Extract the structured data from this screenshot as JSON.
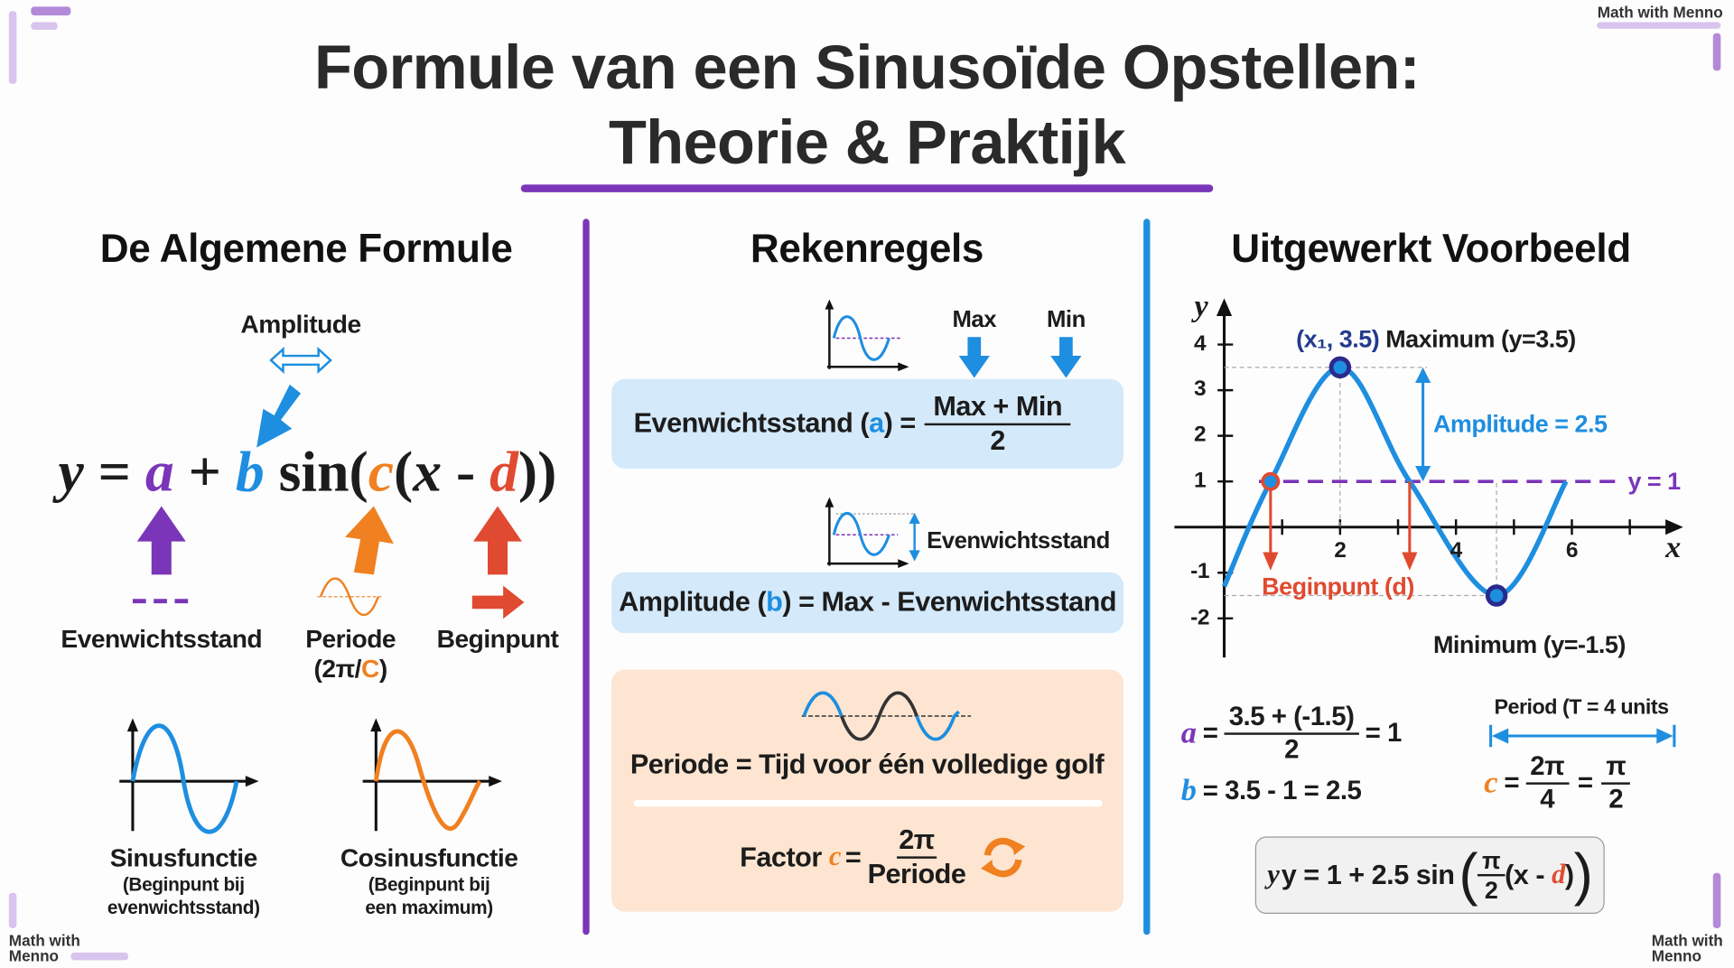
{
  "title": {
    "line1": "Formule van een Sinusoïde Opstellen:",
    "line2": "Theorie & Praktijk"
  },
  "watermark": {
    "top_right": "Math with Menno",
    "bottom_left_1": "Math with",
    "bottom_left_2": "Menno",
    "bottom_right_1": "Math with",
    "bottom_right_2": "Menno"
  },
  "colors": {
    "purple": "#7a35b8",
    "blue": "#1e8ee0",
    "orange": "#f08020",
    "red": "#e04a30",
    "box_blue": "#d4e9f9",
    "box_peach": "#fde5d1"
  },
  "left": {
    "heading": "De Algemene Formule",
    "amplitude_label": "Amplitude",
    "formula": {
      "y": "y",
      "eq": " = ",
      "a": "a",
      "plus": " + ",
      "b": "b",
      "sin": " sin(",
      "c": "c",
      "open": "(",
      "x": "x",
      "minus": " - ",
      "d": "d",
      "close": "))"
    },
    "labels": {
      "a": "Evenwichtsstand",
      "c": "Periode",
      "c_sub_pre": "(2π/",
      "c_sub_c": "C",
      "c_sub_post": ")",
      "d": "Beginpunt"
    },
    "sine": {
      "name": "Sinusfunctie",
      "sub1": "(Beginpunt bij",
      "sub2": "evenwichtsstand)"
    },
    "cosine": {
      "name": "Cosinusfunctie",
      "sub1": "(Beginpunt bij",
      "sub2": "een maximum)"
    }
  },
  "middle": {
    "heading": "Rekenregels",
    "max_label": "Max",
    "min_label": "Min",
    "eq1": {
      "pre": "Evenwichtsstand (",
      "var": "a",
      "post": ") =",
      "num": "Max + Min",
      "den": "2"
    },
    "amp_icon_label": "Evenwichtsstand",
    "eq2": {
      "pre": "Amplitude (",
      "var": "b",
      "post": ") = Max - Evenwichtsstand"
    },
    "period_def": "Periode = Tijd voor één volledige golf",
    "eq3": {
      "pre": "Factor ",
      "var": "c",
      "post": " =",
      "num": "2π",
      "den": "Periode"
    }
  },
  "right": {
    "heading": "Uitgewerkt Voorbeeld",
    "graph": {
      "y_axis_label": "y",
      "x_axis_label": "x",
      "x_ticks": [
        "2",
        "4",
        "6"
      ],
      "y_ticks": [
        "4",
        "3",
        "2",
        "1",
        "-1",
        "-2"
      ],
      "max_point": "(x₁, 3.5)",
      "max_label": "Maximum (y=3.5)",
      "min_label": "Minimum (y=-1.5)",
      "amplitude_label": "Amplitude = 2.5",
      "midline_label": "y = 1",
      "start_label": "Beginpunt (d)"
    },
    "calc": {
      "a_var": "a",
      "a_eq": "=",
      "a_num": "3.5 + (-1.5)",
      "a_den": "2",
      "a_res": "= 1",
      "b_var": "b",
      "b_rest": "= 3.5 - 1 = 2.5",
      "period_label": "Period (T = 4 units",
      "c_var": "c",
      "c_eq": "=",
      "c_num1": "2π",
      "c_den1": "4",
      "c_eq2": "=",
      "c_num2": "π",
      "c_den2": "2"
    },
    "final": {
      "pre": "y = 1 + 2.5 sin",
      "num": "π",
      "den": "2",
      "inner": "(x - ",
      "d": "d",
      "close": ")"
    }
  },
  "chart_data": {
    "type": "line",
    "title": "",
    "xlabel": "x",
    "ylabel": "y",
    "xlim": [
      0,
      7.8
    ],
    "ylim": [
      -2.8,
      4.5
    ],
    "x_ticks": [
      1,
      2,
      3,
      4,
      5,
      6,
      7
    ],
    "y_ticks": [
      -2,
      -1,
      1,
      2,
      3,
      4
    ],
    "series": [
      {
        "x": [
          0,
          0.8,
          2,
          3.2,
          4.7,
          5.9
        ],
        "y": [
          -1.3,
          1,
          3.5,
          1,
          -1.5,
          1
        ]
      }
    ],
    "midline": 1,
    "maximum": [
      2,
      3.5
    ],
    "minimum": [
      4.7,
      -1.5
    ],
    "start_points": [
      0.8,
      3.2
    ],
    "amplitude": 2.5,
    "period": 4
  }
}
